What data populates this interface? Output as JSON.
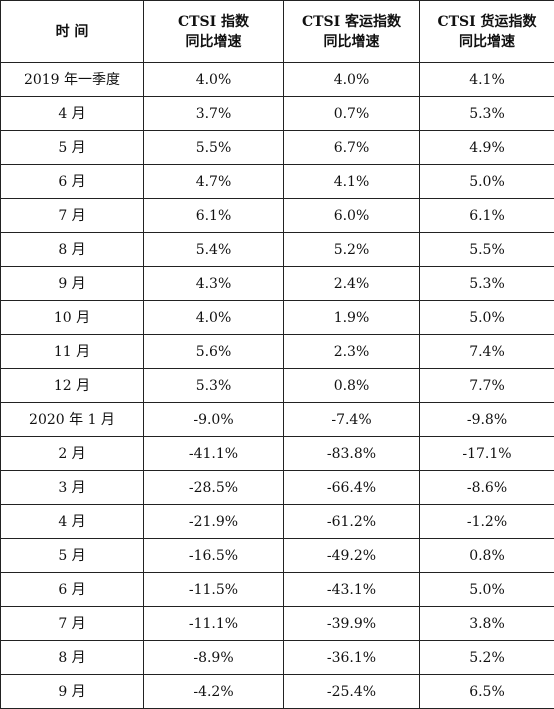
{
  "table": {
    "headers": [
      [
        "时 间"
      ],
      [
        "CTSI 指数",
        "同比增速"
      ],
      [
        "CTSI 客运指数",
        "同比增速"
      ],
      [
        "CTSI 货运指数",
        "同比增速"
      ]
    ],
    "rows": [
      [
        "2019 年一季度",
        "4.0%",
        "4.0%",
        "4.1%"
      ],
      [
        "4 月",
        "3.7%",
        "0.7%",
        "5.3%"
      ],
      [
        "5 月",
        "5.5%",
        "6.7%",
        "4.9%"
      ],
      [
        "6 月",
        "4.7%",
        "4.1%",
        "5.0%"
      ],
      [
        "7 月",
        "6.1%",
        "6.0%",
        "6.1%"
      ],
      [
        "8 月",
        "5.4%",
        "5.2%",
        "5.5%"
      ],
      [
        "9 月",
        "4.3%",
        "2.4%",
        "5.3%"
      ],
      [
        "10 月",
        "4.0%",
        "1.9%",
        "5.0%"
      ],
      [
        "11 月",
        "5.6%",
        "2.3%",
        "7.4%"
      ],
      [
        "12 月",
        "5.3%",
        "0.8%",
        "7.7%"
      ],
      [
        "2020 年 1 月",
        "-9.0%",
        "-7.4%",
        "-9.8%"
      ],
      [
        "2 月",
        "-41.1%",
        "-83.8%",
        "-17.1%"
      ],
      [
        "3 月",
        "-28.5%",
        "-66.4%",
        "-8.6%"
      ],
      [
        "4 月",
        "-21.9%",
        "-61.2%",
        "-1.2%"
      ],
      [
        "5 月",
        "-16.5%",
        "-49.2%",
        "0.8%"
      ],
      [
        "6 月",
        "-11.5%",
        "-43.1%",
        "5.0%"
      ],
      [
        "7 月",
        "-11.1%",
        "-39.9%",
        "3.8%"
      ],
      [
        "8 月",
        "-8.9%",
        "-36.1%",
        "5.2%"
      ],
      [
        "9 月",
        "-4.2%",
        "-25.4%",
        "6.5%"
      ]
    ]
  }
}
